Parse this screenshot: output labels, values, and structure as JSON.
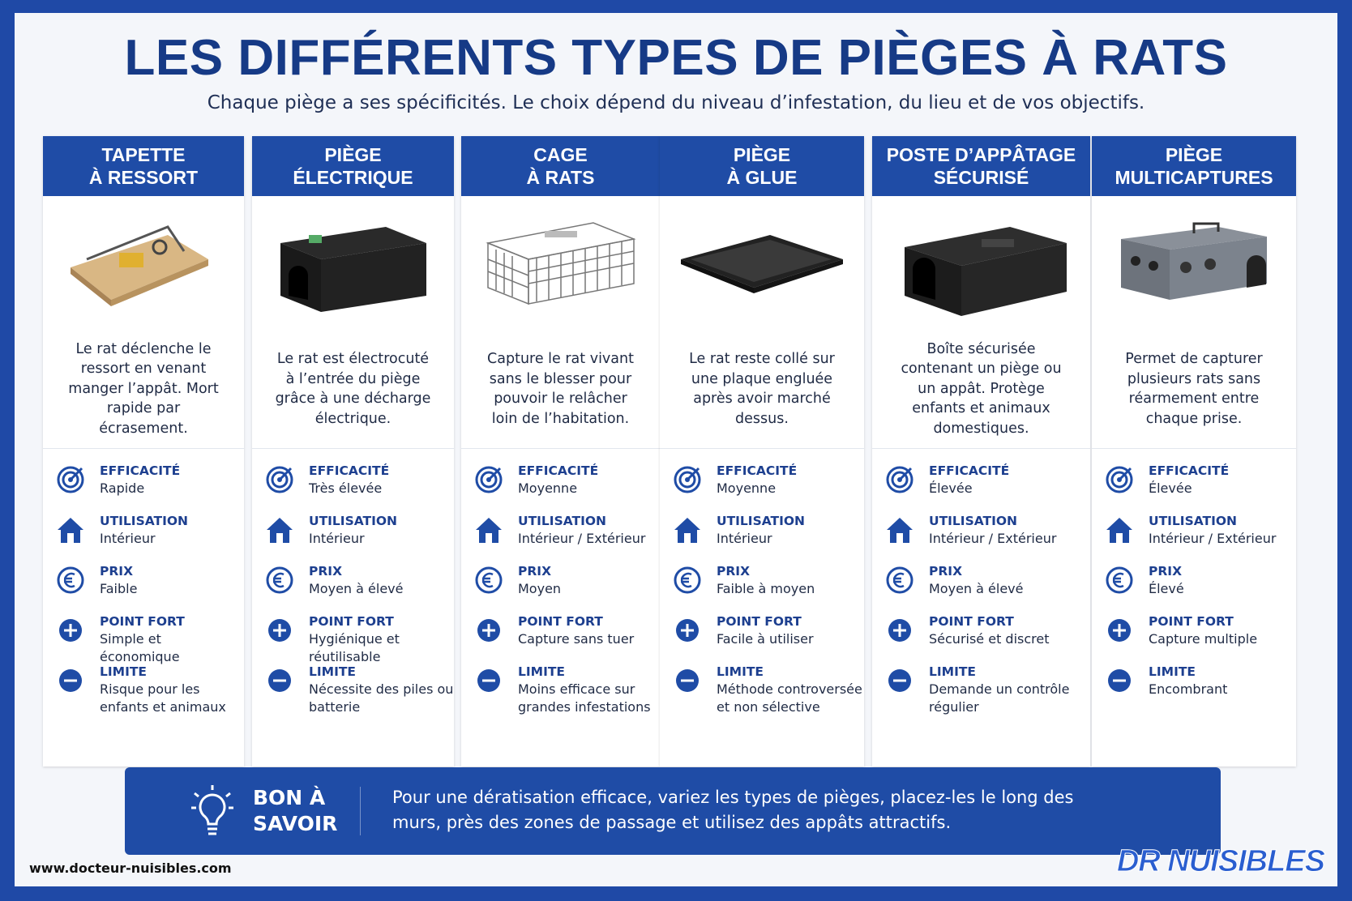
{
  "header": {
    "title": "LES DIFFÉRENTS TYPES DE PIÈGES À RATS",
    "subtitle": "Chaque piège a ses spécificités. Le choix dépend du niveau d’infestation, du lieu et de vos objectifs."
  },
  "cards": [
    {
      "title_lines": [
        "TAPETTE",
        "À RESSORT"
      ],
      "description": "Le rat déclenche le ressort en venant manger l’appât. Mort rapide par écrasement.",
      "attributes": [
        {
          "label": "EFFICACITÉ",
          "value": "Rapide"
        },
        {
          "label": "UTILISATION",
          "value": "Intérieur"
        },
        {
          "label": "PRIX",
          "value": "Faible"
        },
        {
          "label": "POINT FORT",
          "value": "Simple et économique"
        },
        {
          "label": "LIMITE",
          "value": "Risque pour les enfants et animaux"
        }
      ]
    },
    {
      "title_lines": [
        "PIÈGE",
        "ÉLECTRIQUE"
      ],
      "description": "Le rat est électrocuté à l’entrée du piège grâce à une décharge électrique.",
      "attributes": [
        {
          "label": "EFFICACITÉ",
          "value": "Très élevée"
        },
        {
          "label": "UTILISATION",
          "value": "Intérieur"
        },
        {
          "label": "PRIX",
          "value": "Moyen à élevé"
        },
        {
          "label": "POINT FORT",
          "value": "Hygiénique et réutilisable"
        },
        {
          "label": "LIMITE",
          "value": "Nécessite des piles ou batterie"
        }
      ]
    },
    {
      "title_lines": [
        "CAGE",
        "À RATS"
      ],
      "description": "Capture le rat vivant sans le blesser pour pouvoir le relâcher loin de l’habitation.",
      "attributes": [
        {
          "label": "EFFICACITÉ",
          "value": "Moyenne"
        },
        {
          "label": "UTILISATION",
          "value": "Intérieur / Extérieur"
        },
        {
          "label": "PRIX",
          "value": "Moyen"
        },
        {
          "label": "POINT FORT",
          "value": "Capture sans tuer"
        },
        {
          "label": "LIMITE",
          "value": "Moins efficace sur grandes infestations"
        }
      ]
    },
    {
      "title_lines": [
        "PIÈGE",
        "À GLUE"
      ],
      "description": "Le rat reste collé sur une plaque engluée après avoir marché dessus.",
      "attributes": [
        {
          "label": "EFFICACITÉ",
          "value": "Moyenne"
        },
        {
          "label": "UTILISATION",
          "value": "Intérieur"
        },
        {
          "label": "PRIX",
          "value": "Faible à moyen"
        },
        {
          "label": "POINT FORT",
          "value": "Facile à utiliser"
        },
        {
          "label": "LIMITE",
          "value": "Méthode controversée et non sélective"
        }
      ]
    },
    {
      "title_lines": [
        "POSTE D’APPÂTAGE",
        "SÉCURISÉ"
      ],
      "description": "Boîte sécurisée contenant un piège ou un appât. Protège enfants et animaux domestiques.",
      "attributes": [
        {
          "label": "EFFICACITÉ",
          "value": "Élevée"
        },
        {
          "label": "UTILISATION",
          "value": "Intérieur / Extérieur"
        },
        {
          "label": "PRIX",
          "value": "Moyen à élevé"
        },
        {
          "label": "POINT FORT",
          "value": "Sécurisé et discret"
        },
        {
          "label": "LIMITE",
          "value": "Demande un contrôle régulier"
        }
      ]
    },
    {
      "title_lines": [
        "PIÈGE",
        "MULTICAPTURES"
      ],
      "description": "Permet de capturer plusieurs rats sans réarmement entre chaque prise.",
      "attributes": [
        {
          "label": "EFFICACITÉ",
          "value": "Élevée"
        },
        {
          "label": "UTILISATION",
          "value": "Intérieur / Extérieur"
        },
        {
          "label": "PRIX",
          "value": "Élevé"
        },
        {
          "label": "POINT FORT",
          "value": "Capture multiple"
        },
        {
          "label": "LIMITE",
          "value": "Encombrant"
        }
      ]
    }
  ],
  "tip": {
    "label_lines": [
      "BON À",
      "SAVOIR"
    ],
    "text": "Pour une dératisation efficace, variez les types de pièges, placez-les le long des murs, près des zones de passage et utilisez des appâts attractifs."
  },
  "footer": {
    "url": "www.docteur-nuisibles.com",
    "logo": "DR NUISIBLES"
  }
}
